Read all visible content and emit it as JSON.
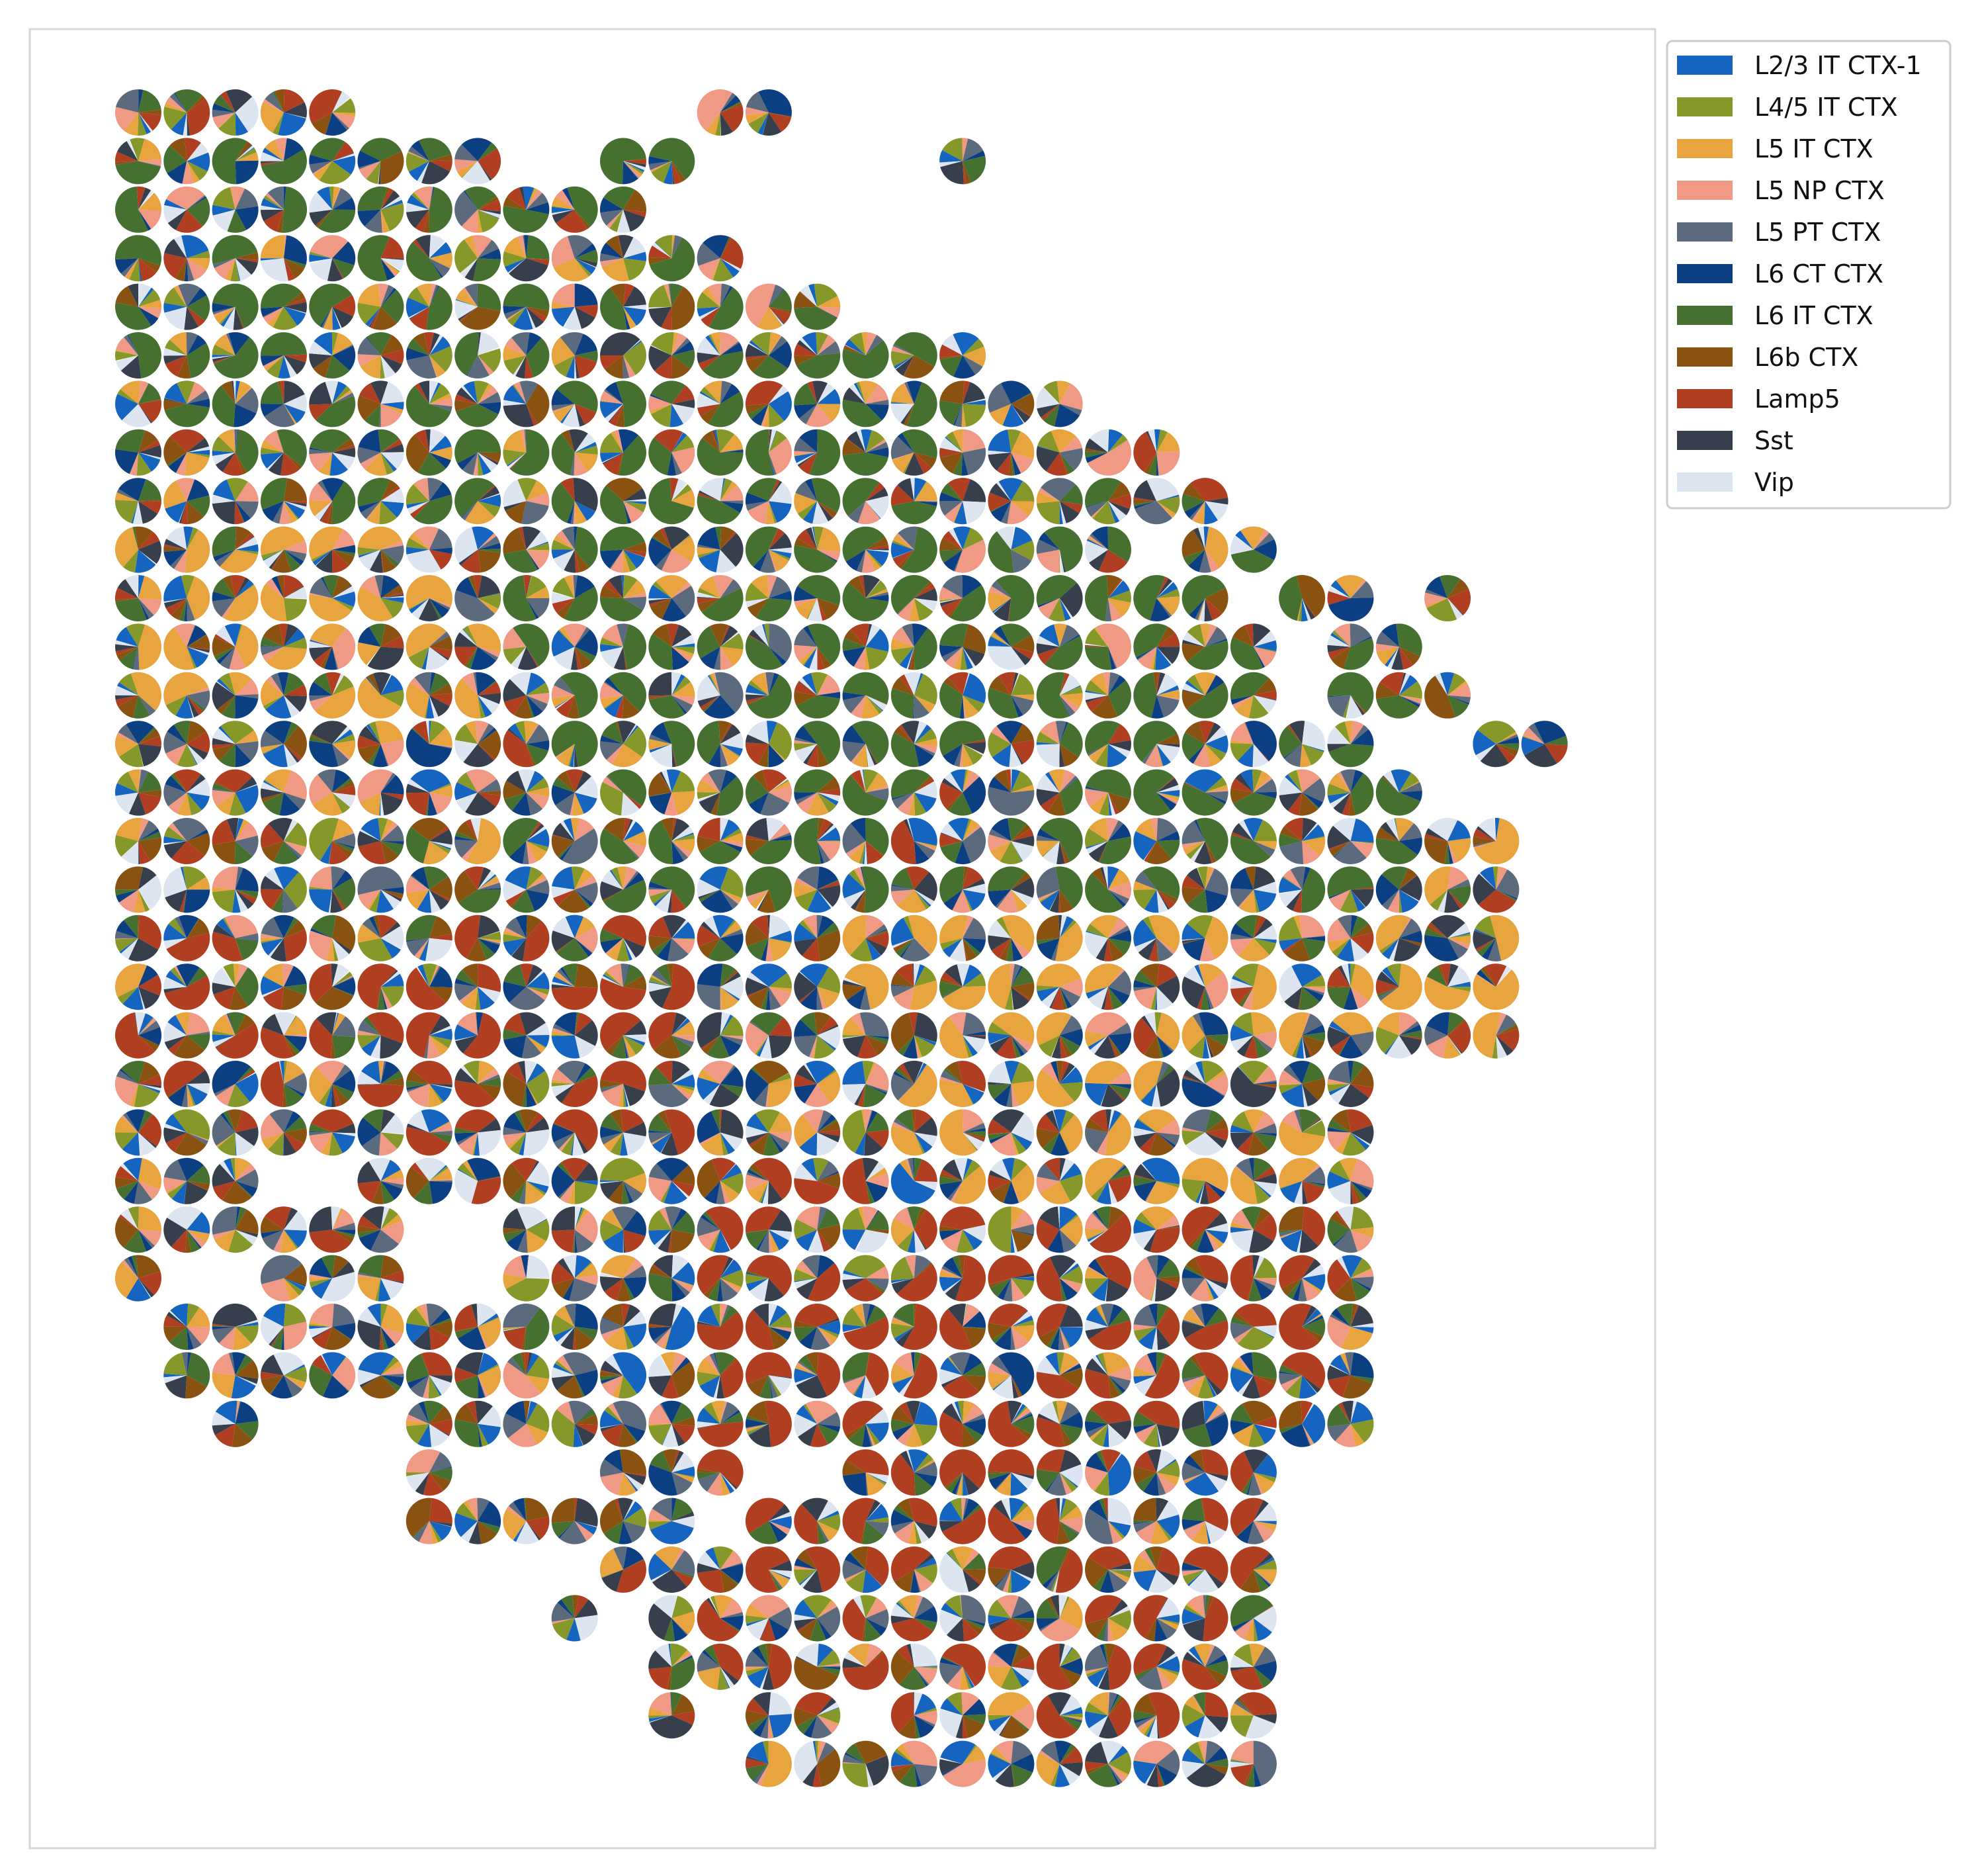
{
  "chart_data": {
    "type": "scatter",
    "marker": "pie",
    "title": "",
    "xlabel": "",
    "ylabel": "",
    "axes_visible": false,
    "grid": false,
    "legend_position": "outside right, top",
    "categories": [
      "L2/3 IT CTX-1",
      "L4/5 IT CTX",
      "L5 IT CTX",
      "L5 NP CTX",
      "L5 PT CTX",
      "L6 CT CTX",
      "L6 IT CTX",
      "L6b CTX",
      "Lamp5",
      "Sst",
      "Vip"
    ],
    "colors": [
      "#1565c0",
      "#86982a",
      "#e7a43f",
      "#f09985",
      "#5b6b7d",
      "#0b3f82",
      "#46702f",
      "#8a5210",
      "#b03e20",
      "#363f4b",
      "#dde5f1"
    ],
    "grid_spec": {
      "row_count": 36,
      "column_count": 30,
      "row_runs": [
        [
          [
            0,
            4
          ],
          [
            12,
            13
          ]
        ],
        [
          [
            0,
            7
          ],
          [
            10,
            11
          ],
          [
            17,
            17
          ]
        ],
        [
          [
            0,
            10
          ]
        ],
        [
          [
            0,
            12
          ]
        ],
        [
          [
            0,
            14
          ]
        ],
        [
          [
            0,
            17
          ]
        ],
        [
          [
            0,
            19
          ]
        ],
        [
          [
            0,
            21
          ]
        ],
        [
          [
            0,
            22
          ]
        ],
        [
          [
            0,
            20
          ],
          [
            22,
            23
          ]
        ],
        [
          [
            0,
            22
          ],
          [
            24,
            25
          ],
          [
            27,
            27
          ]
        ],
        [
          [
            0,
            23
          ],
          [
            25,
            26
          ]
        ],
        [
          [
            0,
            23
          ],
          [
            25,
            27
          ]
        ],
        [
          [
            0,
            25
          ],
          [
            28,
            29
          ]
        ],
        [
          [
            0,
            26
          ]
        ],
        [
          [
            0,
            28
          ]
        ],
        [
          [
            0,
            28
          ]
        ],
        [
          [
            0,
            28
          ]
        ],
        [
          [
            0,
            28
          ]
        ],
        [
          [
            0,
            28
          ]
        ],
        [
          [
            0,
            25
          ]
        ],
        [
          [
            0,
            25
          ]
        ],
        [
          [
            0,
            2
          ],
          [
            5,
            25
          ]
        ],
        [
          [
            0,
            5
          ],
          [
            8,
            25
          ]
        ],
        [
          [
            0,
            0
          ],
          [
            3,
            5
          ],
          [
            8,
            25
          ]
        ],
        [
          [
            1,
            25
          ]
        ],
        [
          [
            1,
            25
          ]
        ],
        [
          [
            2,
            2
          ],
          [
            6,
            25
          ]
        ],
        [
          [
            6,
            6
          ],
          [
            10,
            12
          ],
          [
            15,
            23
          ]
        ],
        [
          [
            6,
            11
          ],
          [
            13,
            23
          ]
        ],
        [
          [
            10,
            23
          ]
        ],
        [
          [
            9,
            9
          ],
          [
            11,
            23
          ]
        ],
        [
          [
            11,
            23
          ]
        ],
        [
          [
            11,
            11
          ],
          [
            13,
            14
          ],
          [
            16,
            23
          ]
        ],
        [
          [
            13,
            23
          ]
        ],
        [
          [
            0,
            -1
          ]
        ]
      ],
      "dominant_regions": [
        {
          "category": "L6 IT CTX",
          "rows": [
            1,
            8
          ],
          "cols": [
            0,
            16
          ]
        },
        {
          "category": "L6 IT CTX",
          "rows": [
            9,
            16
          ],
          "cols": [
            8,
            26
          ]
        },
        {
          "category": "L5 IT CTX",
          "rows": [
            8,
            12
          ],
          "cols": [
            0,
            12
          ]
        },
        {
          "category": "L5 IT CTX",
          "rows": [
            15,
            22
          ],
          "cols": [
            15,
            28
          ]
        },
        {
          "category": "Lamp5",
          "rows": [
            17,
            21
          ],
          "cols": [
            0,
            11
          ]
        },
        {
          "category": "Lamp5",
          "rows": [
            22,
            33
          ],
          "cols": [
            12,
            24
          ]
        }
      ]
    }
  }
}
